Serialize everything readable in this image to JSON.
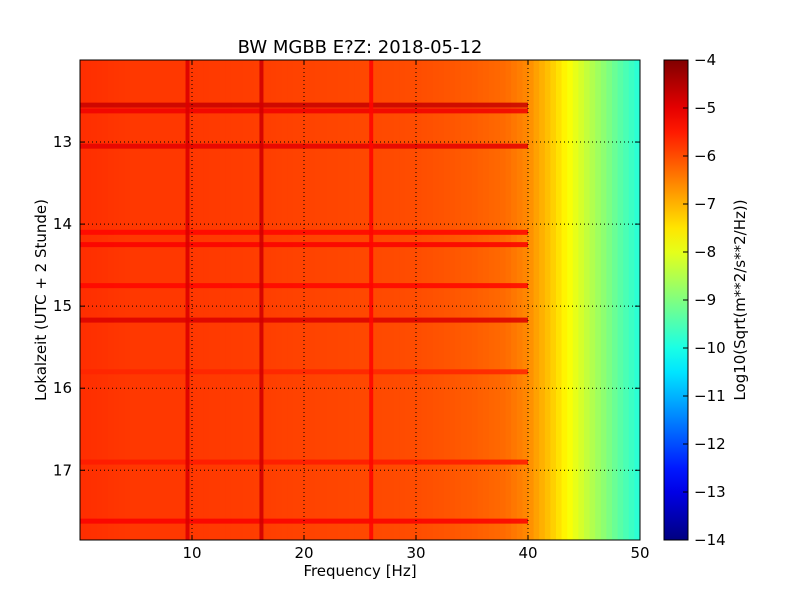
{
  "chart_data": {
    "type": "heatmap",
    "title": "BW MGBB E?Z: 2018-05-12",
    "xlabel": "Frequency [Hz]",
    "ylabel": "Lokalzeit (UTC + 2 Stunde)",
    "colorbar_label": "Log10(Sqrt(m**2/s**2/Hz))",
    "xlim": [
      0,
      50
    ],
    "ylim": [
      12.0,
      17.85
    ],
    "y_inverted": true,
    "clim": [
      -14,
      -4
    ],
    "colormap": "jet",
    "grid": true,
    "x_ticks": [
      10,
      20,
      30,
      40,
      50
    ],
    "x_tick_labels": [
      "10",
      "20",
      "30",
      "40",
      "50"
    ],
    "y_ticks": [
      13,
      14,
      15,
      16,
      17
    ],
    "y_tick_labels": [
      "13",
      "14",
      "15",
      "16",
      "17"
    ],
    "colorbar_ticks": [
      -4,
      -5,
      -6,
      -7,
      -8,
      -9,
      -10,
      -11,
      -12,
      -13,
      -14
    ],
    "colorbar_tick_labels": [
      "−4",
      "−5",
      "−6",
      "−7",
      "−8",
      "−9",
      "−10",
      "−11",
      "−12",
      "−13",
      "−14"
    ],
    "frequency_profile": {
      "frequency_hz": [
        0,
        5,
        10,
        15,
        20,
        25,
        30,
        35,
        38,
        40,
        42,
        44,
        46,
        48,
        50
      ],
      "log10_amplitude": [
        -5.7,
        -5.8,
        -5.8,
        -5.85,
        -5.9,
        -5.95,
        -6.0,
        -6.15,
        -6.3,
        -6.6,
        -7.2,
        -7.9,
        -8.6,
        -9.3,
        -9.9
      ]
    },
    "vertical_lines_hz": [
      {
        "frequency_hz": 9.6,
        "log10_amplitude": -4.9
      },
      {
        "frequency_hz": 16.2,
        "log10_amplitude": -4.8
      },
      {
        "frequency_hz": 26.0,
        "log10_amplitude": -5.3
      }
    ],
    "horizontal_bands_hour": [
      {
        "hour": 12.55,
        "log10_amplitude": -4.7
      },
      {
        "hour": 12.62,
        "log10_amplitude": -5.1
      },
      {
        "hour": 13.05,
        "log10_amplitude": -5.0
      },
      {
        "hour": 14.1,
        "log10_amplitude": -5.3
      },
      {
        "hour": 14.25,
        "log10_amplitude": -5.2
      },
      {
        "hour": 14.75,
        "log10_amplitude": -5.3
      },
      {
        "hour": 15.17,
        "log10_amplitude": -4.9
      },
      {
        "hour": 15.8,
        "log10_amplitude": -5.6
      },
      {
        "hour": 16.9,
        "log10_amplitude": -5.5
      },
      {
        "hour": 17.62,
        "log10_amplitude": -5.2
      }
    ]
  }
}
